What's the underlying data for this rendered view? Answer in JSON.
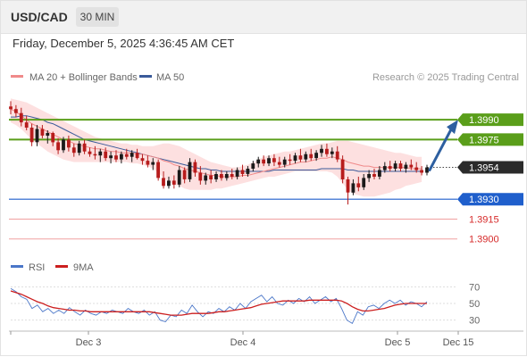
{
  "header": {
    "symbol": "USD/CAD",
    "timeframe": "30 MIN"
  },
  "timestamp": "Friday, December 5, 2025 4:36:45 AM CET",
  "legend": {
    "ma20": "MA 20 + Bollinger Bands",
    "ma50": "MA 50",
    "copyright": "Research © 2025 Trading Central"
  },
  "rsi_legend": {
    "rsi": "RSI",
    "ma9": "9MA"
  },
  "colors": {
    "up_candle": "#1a1a1a",
    "down_candle": "#b71c1c",
    "ma20": "#f08a8a",
    "ma50": "#3a5a9a",
    "bollinger_fill": "#fde0e0",
    "resistance": "#5a9e1a",
    "support": "#1f5fcc",
    "red_level": "#d62a2a",
    "current_price": "#2b2b2b",
    "arrow": "#2d5fa0",
    "rsi_line": "#4a76c8",
    "rsi_ma": "#cc1f1f"
  },
  "chart_data": [
    {
      "type": "candlestick",
      "x_axis": {
        "ticks": [
          "Dec 3",
          "Dec 4",
          "Dec 5",
          "Dec 15"
        ]
      },
      "y_range": [
        1.3885,
        1.4015
      ],
      "levels": [
        {
          "value": 1.399,
          "label": "1.3990",
          "style": "resistance-box"
        },
        {
          "value": 1.3975,
          "label": "1.3975",
          "style": "resistance-box"
        },
        {
          "value": 1.3954,
          "label": "1.3954",
          "style": "current-box"
        },
        {
          "value": 1.393,
          "label": "1.3930",
          "style": "support-box"
        },
        {
          "value": 1.3915,
          "label": "1.3915",
          "style": "red-text"
        },
        {
          "value": 1.39,
          "label": "1.3900",
          "style": "red-text"
        }
      ],
      "candles": [
        {
          "o": 1.4,
          "h": 1.4004,
          "l": 1.3994,
          "c": 1.3998
        },
        {
          "o": 1.3998,
          "h": 1.4001,
          "l": 1.3992,
          "c": 1.3995
        },
        {
          "o": 1.3995,
          "h": 1.3999,
          "l": 1.3985,
          "c": 1.3988
        },
        {
          "o": 1.3988,
          "h": 1.3993,
          "l": 1.3982,
          "c": 1.3984
        },
        {
          "o": 1.3984,
          "h": 1.3987,
          "l": 1.397,
          "c": 1.3973
        },
        {
          "o": 1.3973,
          "h": 1.3986,
          "l": 1.397,
          "c": 1.3983
        },
        {
          "o": 1.3983,
          "h": 1.3986,
          "l": 1.3976,
          "c": 1.3978
        },
        {
          "o": 1.3978,
          "h": 1.3982,
          "l": 1.3972,
          "c": 1.398
        },
        {
          "o": 1.398,
          "h": 1.3981,
          "l": 1.397,
          "c": 1.3973
        },
        {
          "o": 1.3973,
          "h": 1.3976,
          "l": 1.3964,
          "c": 1.3967
        },
        {
          "o": 1.3967,
          "h": 1.3977,
          "l": 1.3965,
          "c": 1.3975
        },
        {
          "o": 1.3975,
          "h": 1.3978,
          "l": 1.3966,
          "c": 1.3969
        },
        {
          "o": 1.3969,
          "h": 1.3972,
          "l": 1.3962,
          "c": 1.3965
        },
        {
          "o": 1.3965,
          "h": 1.3974,
          "l": 1.3963,
          "c": 1.3972
        },
        {
          "o": 1.3972,
          "h": 1.3975,
          "l": 1.3964,
          "c": 1.3966
        },
        {
          "o": 1.3966,
          "h": 1.3969,
          "l": 1.3962,
          "c": 1.3964
        },
        {
          "o": 1.3964,
          "h": 1.397,
          "l": 1.396,
          "c": 1.3963
        },
        {
          "o": 1.3963,
          "h": 1.3968,
          "l": 1.3958,
          "c": 1.3966
        },
        {
          "o": 1.3966,
          "h": 1.3969,
          "l": 1.3959,
          "c": 1.3961
        },
        {
          "o": 1.3961,
          "h": 1.3966,
          "l": 1.3957,
          "c": 1.3963
        },
        {
          "o": 1.3963,
          "h": 1.3967,
          "l": 1.3958,
          "c": 1.396
        },
        {
          "o": 1.396,
          "h": 1.3966,
          "l": 1.3957,
          "c": 1.3964
        },
        {
          "o": 1.3964,
          "h": 1.3968,
          "l": 1.396,
          "c": 1.3962
        },
        {
          "o": 1.3962,
          "h": 1.3967,
          "l": 1.3958,
          "c": 1.3965
        },
        {
          "o": 1.3965,
          "h": 1.3968,
          "l": 1.396,
          "c": 1.3961
        },
        {
          "o": 1.3961,
          "h": 1.3964,
          "l": 1.3956,
          "c": 1.3959
        },
        {
          "o": 1.3959,
          "h": 1.3963,
          "l": 1.3954,
          "c": 1.3956
        },
        {
          "o": 1.3956,
          "h": 1.3961,
          "l": 1.3952,
          "c": 1.3958
        },
        {
          "o": 1.3958,
          "h": 1.396,
          "l": 1.3944,
          "c": 1.3946
        },
        {
          "o": 1.3946,
          "h": 1.3951,
          "l": 1.3938,
          "c": 1.394
        },
        {
          "o": 1.394,
          "h": 1.3947,
          "l": 1.3938,
          "c": 1.3944
        },
        {
          "o": 1.3944,
          "h": 1.3948,
          "l": 1.3938,
          "c": 1.3941
        },
        {
          "o": 1.3941,
          "h": 1.3955,
          "l": 1.3939,
          "c": 1.3952
        },
        {
          "o": 1.3952,
          "h": 1.3954,
          "l": 1.3942,
          "c": 1.3945
        },
        {
          "o": 1.3945,
          "h": 1.3961,
          "l": 1.3943,
          "c": 1.3958
        },
        {
          "o": 1.3958,
          "h": 1.396,
          "l": 1.3947,
          "c": 1.395
        },
        {
          "o": 1.395,
          "h": 1.3955,
          "l": 1.3941,
          "c": 1.3944
        },
        {
          "o": 1.3944,
          "h": 1.395,
          "l": 1.3941,
          "c": 1.3948
        },
        {
          "o": 1.3948,
          "h": 1.3952,
          "l": 1.3942,
          "c": 1.3945
        },
        {
          "o": 1.3945,
          "h": 1.3951,
          "l": 1.3943,
          "c": 1.3949
        },
        {
          "o": 1.3949,
          "h": 1.3952,
          "l": 1.3944,
          "c": 1.3946
        },
        {
          "o": 1.3946,
          "h": 1.3951,
          "l": 1.3944,
          "c": 1.3949
        },
        {
          "o": 1.3949,
          "h": 1.3953,
          "l": 1.3945,
          "c": 1.3947
        },
        {
          "o": 1.3947,
          "h": 1.3954,
          "l": 1.3945,
          "c": 1.3952
        },
        {
          "o": 1.3952,
          "h": 1.3956,
          "l": 1.3947,
          "c": 1.3949
        },
        {
          "o": 1.3949,
          "h": 1.3955,
          "l": 1.3947,
          "c": 1.3953
        },
        {
          "o": 1.3953,
          "h": 1.3959,
          "l": 1.3951,
          "c": 1.3957
        },
        {
          "o": 1.3957,
          "h": 1.3962,
          "l": 1.3954,
          "c": 1.396
        },
        {
          "o": 1.396,
          "h": 1.3963,
          "l": 1.3955,
          "c": 1.3957
        },
        {
          "o": 1.3957,
          "h": 1.3963,
          "l": 1.3955,
          "c": 1.3961
        },
        {
          "o": 1.3961,
          "h": 1.3964,
          "l": 1.3955,
          "c": 1.3958
        },
        {
          "o": 1.3958,
          "h": 1.3962,
          "l": 1.3954,
          "c": 1.3956
        },
        {
          "o": 1.3956,
          "h": 1.3962,
          "l": 1.3954,
          "c": 1.396
        },
        {
          "o": 1.396,
          "h": 1.3964,
          "l": 1.3956,
          "c": 1.3959
        },
        {
          "o": 1.3959,
          "h": 1.3965,
          "l": 1.3957,
          "c": 1.3963
        },
        {
          "o": 1.3963,
          "h": 1.3968,
          "l": 1.3958,
          "c": 1.396
        },
        {
          "o": 1.396,
          "h": 1.3966,
          "l": 1.3958,
          "c": 1.3964
        },
        {
          "o": 1.3964,
          "h": 1.3968,
          "l": 1.3959,
          "c": 1.3961
        },
        {
          "o": 1.3961,
          "h": 1.3967,
          "l": 1.3959,
          "c": 1.3965
        },
        {
          "o": 1.3965,
          "h": 1.3971,
          "l": 1.3962,
          "c": 1.3968
        },
        {
          "o": 1.3968,
          "h": 1.3972,
          "l": 1.3962,
          "c": 1.3964
        },
        {
          "o": 1.3964,
          "h": 1.3969,
          "l": 1.3961,
          "c": 1.3966
        },
        {
          "o": 1.3966,
          "h": 1.397,
          "l": 1.3958,
          "c": 1.396
        },
        {
          "o": 1.396,
          "h": 1.3963,
          "l": 1.3942,
          "c": 1.3945
        },
        {
          "o": 1.3945,
          "h": 1.3947,
          "l": 1.3926,
          "c": 1.3935
        },
        {
          "o": 1.3935,
          "h": 1.3945,
          "l": 1.3933,
          "c": 1.3942
        },
        {
          "o": 1.3942,
          "h": 1.3947,
          "l": 1.3936,
          "c": 1.3939
        },
        {
          "o": 1.3939,
          "h": 1.3949,
          "l": 1.3937,
          "c": 1.3946
        },
        {
          "o": 1.3946,
          "h": 1.3952,
          "l": 1.3943,
          "c": 1.3949
        },
        {
          "o": 1.3949,
          "h": 1.3953,
          "l": 1.3945,
          "c": 1.3947
        },
        {
          "o": 1.3947,
          "h": 1.3955,
          "l": 1.3945,
          "c": 1.3952
        },
        {
          "o": 1.3952,
          "h": 1.3958,
          "l": 1.395,
          "c": 1.3955
        },
        {
          "o": 1.3955,
          "h": 1.3959,
          "l": 1.3951,
          "c": 1.3953
        },
        {
          "o": 1.3953,
          "h": 1.3959,
          "l": 1.3951,
          "c": 1.3957
        },
        {
          "o": 1.3957,
          "h": 1.3959,
          "l": 1.3951,
          "c": 1.3953
        },
        {
          "o": 1.3953,
          "h": 1.3958,
          "l": 1.395,
          "c": 1.3956
        },
        {
          "o": 1.3956,
          "h": 1.396,
          "l": 1.3952,
          "c": 1.3954
        },
        {
          "o": 1.3954,
          "h": 1.3958,
          "l": 1.395,
          "c": 1.3952
        },
        {
          "o": 1.3952,
          "h": 1.3955,
          "l": 1.3948,
          "c": 1.395
        },
        {
          "o": 1.395,
          "h": 1.3956,
          "l": 1.3948,
          "c": 1.3954
        }
      ],
      "ma20": [
        1.3998,
        1.3996,
        1.3993,
        1.399,
        1.3987,
        1.3985,
        1.3983,
        1.3981,
        1.3979,
        1.3977,
        1.3975,
        1.3974,
        1.3972,
        1.3971,
        1.397,
        1.3969,
        1.3968,
        1.3968,
        1.3967,
        1.3966,
        1.3966,
        1.3965,
        1.3965,
        1.3965,
        1.3964,
        1.3964,
        1.3963,
        1.3962,
        1.3961,
        1.3959,
        1.3958,
        1.3956,
        1.3955,
        1.3953,
        1.3952,
        1.3951,
        1.395,
        1.3949,
        1.3948,
        1.3948,
        1.3947,
        1.3947,
        1.3947,
        1.3947,
        1.3948,
        1.3948,
        1.3949,
        1.395,
        1.3951,
        1.3952,
        1.3953,
        1.3954,
        1.3955,
        1.3956,
        1.3957,
        1.3958,
        1.3958,
        1.3959,
        1.396,
        1.3961,
        1.3961,
        1.3962,
        1.3961,
        1.396,
        1.3958,
        1.3957,
        1.3956,
        1.3955,
        1.3955,
        1.3954,
        1.3954,
        1.3954,
        1.3954,
        1.3954,
        1.3954,
        1.3954,
        1.3953,
        1.3953,
        1.3953
      ],
      "bb_upper": [
        1.4006,
        1.4005,
        1.4004,
        1.4003,
        1.4001,
        1.3999,
        1.3997,
        1.3995,
        1.3993,
        1.3991,
        1.3989,
        1.3987,
        1.3985,
        1.3983,
        1.3981,
        1.3979,
        1.3977,
        1.3976,
        1.3975,
        1.3974,
        1.3973,
        1.3972,
        1.3972,
        1.3971,
        1.3971,
        1.397,
        1.397,
        1.397,
        1.3971,
        1.3972,
        1.3972,
        1.3971,
        1.397,
        1.3968,
        1.3966,
        1.3964,
        1.3962,
        1.396,
        1.3958,
        1.3957,
        1.3956,
        1.3955,
        1.3954,
        1.3954,
        1.3955,
        1.3956,
        1.3958,
        1.396,
        1.3962,
        1.3963,
        1.3964,
        1.3965,
        1.3966,
        1.3966,
        1.3967,
        1.3968,
        1.3969,
        1.397,
        1.3971,
        1.3972,
        1.3972,
        1.3973,
        1.3974,
        1.3974,
        1.3974,
        1.3973,
        1.3972,
        1.3971,
        1.397,
        1.3969,
        1.3968,
        1.3967,
        1.3966,
        1.3965,
        1.3965,
        1.3964,
        1.3963,
        1.3962,
        1.3962
      ],
      "bb_lower": [
        1.3988,
        1.3986,
        1.3983,
        1.3979,
        1.3975,
        1.3972,
        1.3969,
        1.3966,
        1.3964,
        1.3962,
        1.396,
        1.3959,
        1.3958,
        1.3958,
        1.3958,
        1.3958,
        1.3958,
        1.3958,
        1.3958,
        1.3958,
        1.3958,
        1.3958,
        1.3958,
        1.3957,
        1.3957,
        1.3956,
        1.3955,
        1.3953,
        1.395,
        1.3946,
        1.3943,
        1.3941,
        1.394,
        1.3938,
        1.3937,
        1.3937,
        1.3937,
        1.3937,
        1.3937,
        1.3938,
        1.3938,
        1.3939,
        1.394,
        1.3941,
        1.3942,
        1.3943,
        1.3944,
        1.3945,
        1.3946,
        1.3947,
        1.3947,
        1.3948,
        1.3949,
        1.395,
        1.3951,
        1.3951,
        1.3951,
        1.3951,
        1.3951,
        1.3951,
        1.3951,
        1.395,
        1.3947,
        1.3942,
        1.3937,
        1.3934,
        1.3933,
        1.3932,
        1.3932,
        1.3932,
        1.3933,
        1.3934,
        1.3935,
        1.3937,
        1.3938,
        1.394,
        1.3941,
        1.3942,
        1.3943
      ],
      "ma50": [
        1.3992,
        1.3992,
        1.3993,
        1.3993,
        1.3992,
        1.3991,
        1.399,
        1.3988,
        1.3987,
        1.3985,
        1.3983,
        1.3981,
        1.3979,
        1.3977,
        1.3975,
        1.3974,
        1.3973,
        1.3972,
        1.3971,
        1.397,
        1.3969,
        1.3968,
        1.3967,
        1.3966,
        1.3965,
        1.3964,
        1.3963,
        1.3962,
        1.3961,
        1.396,
        1.3959,
        1.3958,
        1.3957,
        1.3956,
        1.3955,
        1.3954,
        1.3953,
        1.3953,
        1.3952,
        1.3952,
        1.3951,
        1.3951,
        1.3951,
        1.3951,
        1.3951,
        1.3951,
        1.3951,
        1.3951,
        1.3951,
        1.3951,
        1.3952,
        1.3952,
        1.3952,
        1.3952,
        1.3952,
        1.3952,
        1.3952,
        1.3952,
        1.3952,
        1.3953,
        1.3953,
        1.3953,
        1.3953,
        1.3953,
        1.3952,
        1.3952,
        1.3951,
        1.3951,
        1.3951,
        1.3951,
        1.3951,
        1.3951,
        1.3951,
        1.3951,
        1.3951,
        1.3951,
        1.3951,
        1.3951,
        1.3951
      ],
      "forecast_arrow": {
        "from": 1.3954,
        "to": 1.399
      }
    },
    {
      "type": "line",
      "title": "RSI",
      "y_ticks": [
        70,
        50,
        30
      ],
      "y_range": [
        20,
        80
      ],
      "series": [
        {
          "name": "RSI",
          "values": [
            68,
            64,
            58,
            55,
            44,
            48,
            40,
            44,
            38,
            42,
            38,
            45,
            40,
            36,
            42,
            38,
            36,
            40,
            38,
            42,
            40,
            38,
            44,
            40,
            38,
            42,
            36,
            40,
            30,
            28,
            36,
            34,
            42,
            38,
            48,
            40,
            34,
            40,
            38,
            44,
            40,
            46,
            42,
            50,
            44,
            52,
            56,
            60,
            52,
            58,
            50,
            48,
            54,
            50,
            56,
            52,
            58,
            50,
            54,
            58,
            52,
            56,
            44,
            30,
            26,
            40,
            36,
            46,
            48,
            44,
            50,
            54,
            50,
            54,
            48,
            52,
            50,
            46,
            52
          ]
        },
        {
          "name": "9MA",
          "values": [
            65,
            63,
            61,
            58,
            55,
            52,
            50,
            47,
            45,
            44,
            43,
            42,
            42,
            41,
            41,
            40,
            40,
            40,
            40,
            40,
            40,
            40,
            40,
            40,
            40,
            40,
            40,
            39,
            38,
            37,
            36,
            36,
            36,
            37,
            38,
            38,
            38,
            38,
            39,
            40,
            40,
            41,
            42,
            43,
            44,
            45,
            47,
            49,
            50,
            51,
            52,
            53,
            53,
            53,
            53,
            53,
            54,
            54,
            54,
            54,
            54,
            54,
            53,
            50,
            46,
            43,
            41,
            41,
            42,
            43,
            44,
            46,
            48,
            49,
            50,
            50,
            50,
            50,
            50
          ]
        }
      ]
    }
  ]
}
